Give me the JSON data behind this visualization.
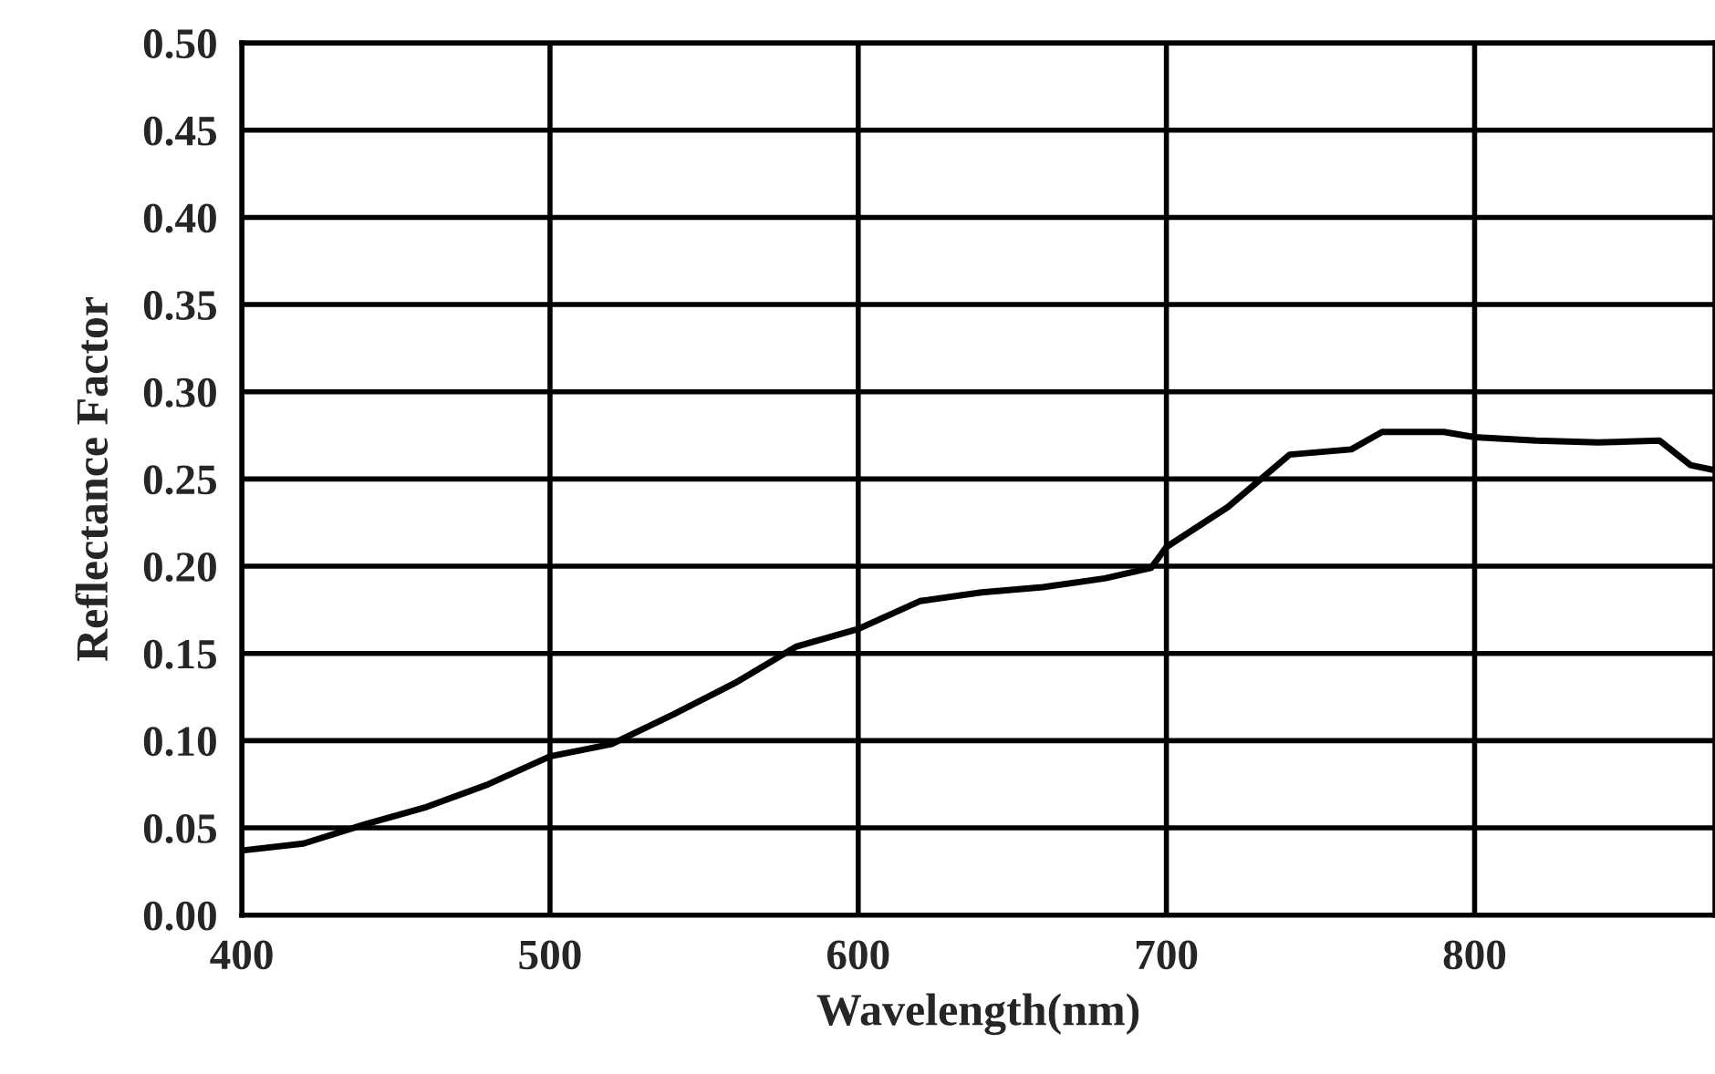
{
  "chart_data": {
    "type": "line",
    "xlabel": "Wavelength(nm)",
    "ylabel": "Reflectance Factor",
    "xlim": [
      400,
      878
    ],
    "xticks": [
      400,
      500,
      600,
      700,
      800
    ],
    "ylim": [
      0,
      0.5
    ],
    "yticks": [
      {
        "value": 0,
        "label": "0.00"
      },
      {
        "value": 0.05,
        "label": "0.05"
      },
      {
        "value": 0.1,
        "label": "0.10"
      },
      {
        "value": 0.15,
        "label": "0.15"
      },
      {
        "value": 0.2,
        "label": "0.20"
      },
      {
        "value": 0.25,
        "label": "0.25"
      },
      {
        "value": 0.3,
        "label": "0.30"
      },
      {
        "value": 0.35,
        "label": "0.35"
      },
      {
        "value": 0.4,
        "label": "0.40"
      },
      {
        "value": 0.45,
        "label": "0.45"
      },
      {
        "value": 0.5,
        "label": "0.50"
      }
    ],
    "grid": true,
    "marker": "none",
    "line_style": "solid",
    "series": [
      {
        "color": "#000000",
        "x": [
          400,
          420,
          440,
          460,
          480,
          500,
          520,
          540,
          560,
          580,
          600,
          620,
          640,
          660,
          680,
          695,
          700,
          720,
          740,
          760,
          770,
          790,
          800,
          820,
          840,
          860,
          870,
          878
        ],
        "values": [
          0.037,
          0.041,
          0.052,
          0.062,
          0.075,
          0.091,
          0.098,
          0.115,
          0.133,
          0.154,
          0.164,
          0.18,
          0.185,
          0.188,
          0.193,
          0.199,
          0.211,
          0.234,
          0.264,
          0.267,
          0.277,
          0.277,
          0.274,
          0.272,
          0.271,
          0.272,
          0.258,
          0.255
        ]
      }
    ]
  }
}
